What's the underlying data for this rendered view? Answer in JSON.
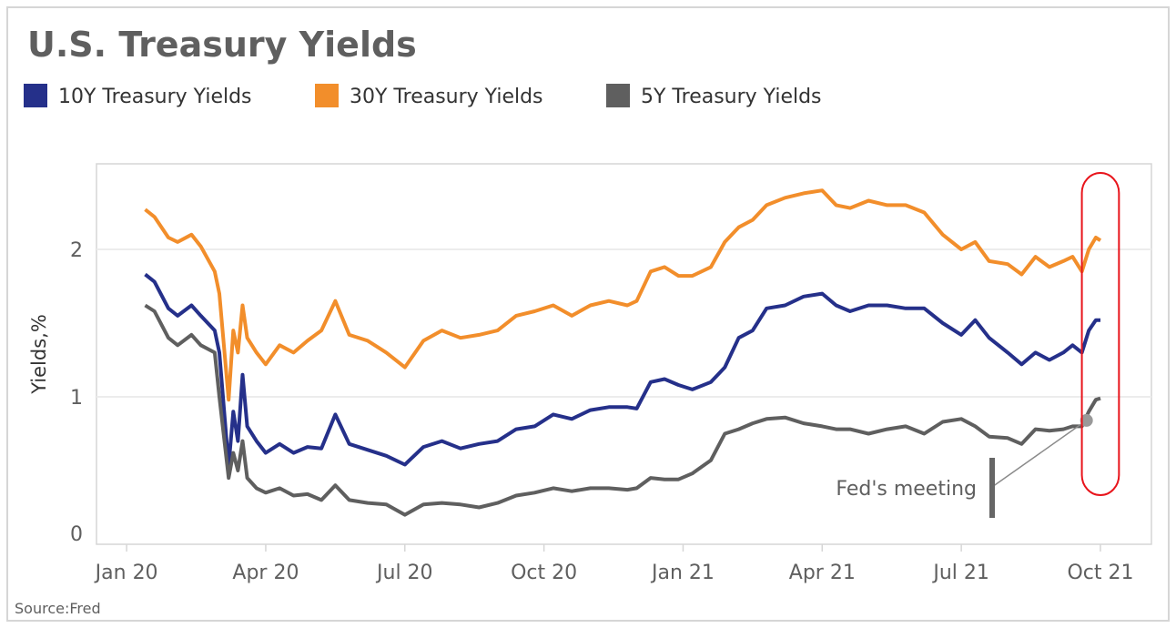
{
  "chart_data": {
    "type": "line",
    "title": "U.S. Treasury Yields",
    "ylabel": "Yields,%",
    "xlabel": "",
    "source": "Source:Fred",
    "ylim": [
      0,
      2.58
    ],
    "yticks": [
      0,
      1,
      2
    ],
    "xlim": [
      -0.65,
      22.1
    ],
    "x_unit": "months since Jan 2020",
    "xticks": [
      {
        "value": 0,
        "label": "Jan 20"
      },
      {
        "value": 3,
        "label": "Apr 20"
      },
      {
        "value": 6,
        "label": "Jul 20"
      },
      {
        "value": 9,
        "label": "Oct 20"
      },
      {
        "value": 12,
        "label": "Jan 21"
      },
      {
        "value": 15,
        "label": "Apr 21"
      },
      {
        "value": 18,
        "label": "Jul 21"
      },
      {
        "value": 21,
        "label": "Oct 21"
      }
    ],
    "grid": true,
    "legend_position": "top-left",
    "x": [
      0.4,
      0.6,
      0.9,
      1.1,
      1.4,
      1.6,
      1.9,
      2.0,
      2.2,
      2.3,
      2.4,
      2.5,
      2.6,
      2.8,
      3.0,
      3.3,
      3.6,
      3.9,
      4.2,
      4.5,
      4.8,
      5.2,
      5.6,
      6.0,
      6.4,
      6.8,
      7.2,
      7.6,
      8.0,
      8.4,
      8.8,
      9.2,
      9.6,
      10.0,
      10.4,
      10.8,
      11.0,
      11.3,
      11.6,
      11.9,
      12.2,
      12.6,
      12.9,
      13.2,
      13.5,
      13.8,
      14.2,
      14.6,
      15.0,
      15.3,
      15.6,
      16.0,
      16.4,
      16.8,
      17.2,
      17.6,
      18.0,
      18.3,
      18.6,
      19.0,
      19.3,
      19.6,
      19.9,
      20.2,
      20.4,
      20.6,
      20.75,
      20.9,
      21.0
    ],
    "series": [
      {
        "name": "10Y Treasury Yields",
        "color": "#25308a",
        "values": [
          1.83,
          1.78,
          1.6,
          1.55,
          1.62,
          1.55,
          1.45,
          1.3,
          0.53,
          0.9,
          0.7,
          1.15,
          0.8,
          0.7,
          0.62,
          0.68,
          0.62,
          0.66,
          0.65,
          0.88,
          0.68,
          0.64,
          0.6,
          0.54,
          0.66,
          0.7,
          0.65,
          0.68,
          0.7,
          0.78,
          0.8,
          0.88,
          0.85,
          0.91,
          0.93,
          0.93,
          0.92,
          1.1,
          1.12,
          1.08,
          1.05,
          1.1,
          1.2,
          1.4,
          1.45,
          1.6,
          1.62,
          1.68,
          1.7,
          1.62,
          1.58,
          1.62,
          1.62,
          1.6,
          1.6,
          1.5,
          1.42,
          1.52,
          1.4,
          1.3,
          1.22,
          1.3,
          1.25,
          1.3,
          1.35,
          1.3,
          1.45,
          1.52,
          1.52
        ]
      },
      {
        "name": "30Y Treasury Yields",
        "color": "#f28e2b",
        "values": [
          2.27,
          2.22,
          2.08,
          2.05,
          2.1,
          2.02,
          1.85,
          1.7,
          0.98,
          1.45,
          1.3,
          1.62,
          1.4,
          1.3,
          1.22,
          1.35,
          1.3,
          1.38,
          1.45,
          1.65,
          1.42,
          1.38,
          1.3,
          1.2,
          1.38,
          1.45,
          1.4,
          1.42,
          1.45,
          1.55,
          1.58,
          1.62,
          1.55,
          1.62,
          1.65,
          1.62,
          1.65,
          1.85,
          1.88,
          1.82,
          1.82,
          1.88,
          2.05,
          2.15,
          2.2,
          2.3,
          2.35,
          2.38,
          2.4,
          2.3,
          2.28,
          2.33,
          2.3,
          2.3,
          2.25,
          2.1,
          2.0,
          2.05,
          1.92,
          1.9,
          1.83,
          1.95,
          1.88,
          1.92,
          1.95,
          1.85,
          2.0,
          2.08,
          2.06
        ]
      },
      {
        "name": "5Y Treasury Yields",
        "color": "#5f5f5f",
        "values": [
          1.62,
          1.58,
          1.4,
          1.35,
          1.42,
          1.35,
          1.3,
          1.0,
          0.45,
          0.62,
          0.5,
          0.7,
          0.45,
          0.38,
          0.35,
          0.38,
          0.33,
          0.34,
          0.3,
          0.4,
          0.3,
          0.28,
          0.27,
          0.2,
          0.27,
          0.28,
          0.27,
          0.25,
          0.28,
          0.33,
          0.35,
          0.38,
          0.36,
          0.38,
          0.38,
          0.37,
          0.38,
          0.45,
          0.44,
          0.44,
          0.48,
          0.57,
          0.75,
          0.78,
          0.82,
          0.85,
          0.86,
          0.82,
          0.8,
          0.78,
          0.78,
          0.75,
          0.78,
          0.8,
          0.75,
          0.83,
          0.85,
          0.8,
          0.73,
          0.72,
          0.68,
          0.78,
          0.77,
          0.78,
          0.8,
          0.8,
          0.9,
          0.98,
          0.99
        ]
      }
    ],
    "annotations": [
      {
        "text": "Fed's meeting",
        "x": 20.7,
        "y": 0.84,
        "highlight_color": "#e8141b",
        "highlight_x_range": [
          20.6,
          21.4
        ]
      }
    ]
  }
}
